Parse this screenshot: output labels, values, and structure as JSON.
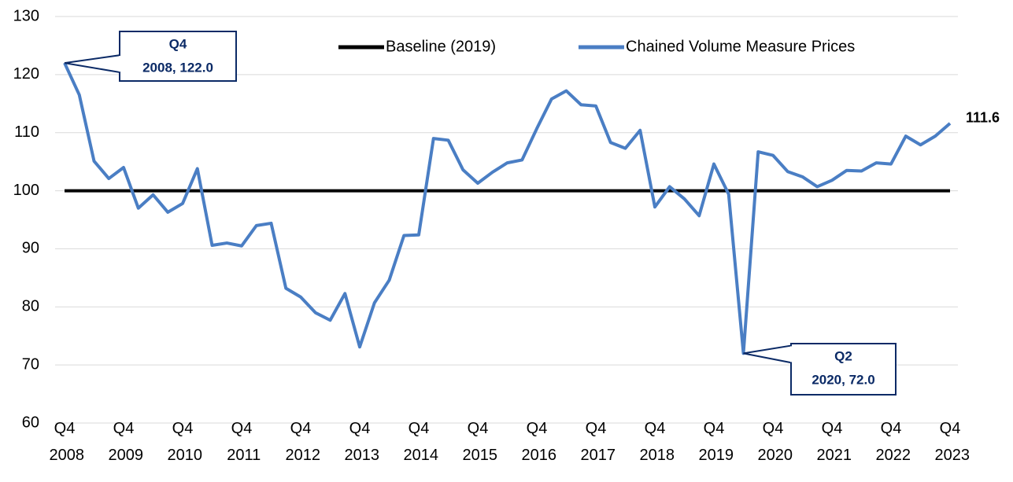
{
  "chart_data": {
    "type": "line",
    "categories": [
      "Q4 2008",
      null,
      null,
      null,
      "Q4 2009",
      null,
      null,
      null,
      "Q4 2010",
      null,
      null,
      null,
      "Q4 2011",
      null,
      null,
      null,
      "Q4 2012",
      null,
      null,
      null,
      "Q4 2013",
      null,
      null,
      null,
      "Q4 2014",
      null,
      null,
      null,
      "Q4 2015",
      null,
      null,
      null,
      "Q4 2016",
      null,
      null,
      null,
      "Q4 2017",
      null,
      null,
      null,
      "Q4 2018",
      null,
      null,
      null,
      "Q4 2019",
      null,
      null,
      null,
      "Q4 2020",
      null,
      null,
      null,
      "Q4 2021",
      null,
      null,
      null,
      "Q4 2022",
      null,
      null,
      null,
      "Q4 2023"
    ],
    "series": [
      {
        "name": "Baseline (2019)",
        "color": "#000000",
        "values": [
          100,
          100,
          100,
          100,
          100,
          100,
          100,
          100,
          100,
          100,
          100,
          100,
          100,
          100,
          100,
          100,
          100,
          100,
          100,
          100,
          100,
          100,
          100,
          100,
          100,
          100,
          100,
          100,
          100,
          100,
          100,
          100,
          100,
          100,
          100,
          100,
          100,
          100,
          100,
          100,
          100,
          100,
          100,
          100,
          100,
          100,
          100,
          100,
          100,
          100,
          100,
          100,
          100,
          100,
          100,
          100,
          100,
          100,
          100,
          100,
          100
        ]
      },
      {
        "name": "Chained Volume Measure Prices",
        "color": "#4a7ec4",
        "values": [
          122.0,
          116.5,
          105.1,
          102.1,
          104.0,
          97.0,
          99.3,
          96.3,
          97.8,
          103.8,
          90.6,
          91.0,
          90.5,
          94.0,
          94.4,
          83.2,
          81.7,
          79.0,
          77.7,
          82.3,
          73.1,
          80.7,
          84.6,
          92.3,
          92.4,
          109.0,
          108.7,
          103.6,
          101.3,
          103.2,
          104.8,
          105.3,
          110.7,
          115.8,
          117.2,
          114.8,
          114.6,
          108.3,
          107.3,
          110.4,
          97.2,
          100.7,
          98.6,
          95.7,
          104.6,
          99.4,
          72.0,
          106.7,
          106.1,
          103.3,
          102.4,
          100.7,
          101.8,
          103.5,
          103.4,
          104.8,
          104.6,
          109.4,
          107.9,
          109.4,
          111.6
        ]
      }
    ],
    "annotations": [
      {
        "lines": [
          "Q4",
          "2008, 122.0"
        ]
      },
      {
        "lines": [
          "Q2",
          "2020, 72.0"
        ]
      }
    ],
    "ylim": [
      60,
      130
    ],
    "yticks": [
      60,
      70,
      80,
      90,
      100,
      110,
      120,
      130
    ],
    "grid": true,
    "legend": "top"
  }
}
